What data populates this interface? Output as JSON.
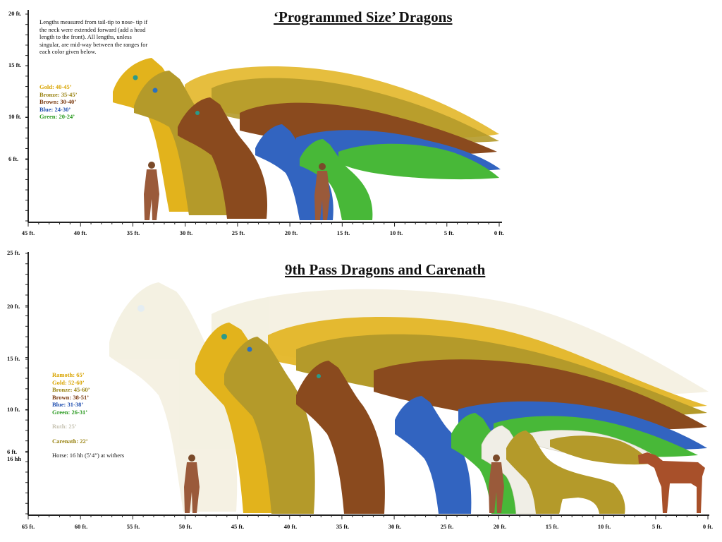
{
  "top": {
    "title": "‘Programmed Size’ Dragons",
    "note": "Lengths measured from tail-tip to nose- tip if the neck were extended forward (add a head length to the front). All lengths, unless singular, are mid-way between the ranges for each color given below.",
    "legend": [
      {
        "text": "Gold: 40-45’",
        "color": "#d9a400"
      },
      {
        "text": "Bronze: 35-45’",
        "color": "#9a8414"
      },
      {
        "text": "Brown: 30-40’",
        "color": "#7a3a10"
      },
      {
        "text": "Blue: 24-30’",
        "color": "#2250b0"
      },
      {
        "text": "Green: 20-24’",
        "color": "#2a9a20"
      }
    ],
    "y_ticks": [
      "20 ft.",
      "15 ft.",
      "10 ft.",
      "6 ft."
    ],
    "x_ticks": [
      "45 ft.",
      "40 ft.",
      "35 ft.",
      "30 ft.",
      "25 ft.",
      "20 ft.",
      "15 ft.",
      "10 ft.",
      "5 ft.",
      "0 ft."
    ]
  },
  "bottom": {
    "title": "9th Pass Dragons and Carenath",
    "legend": [
      {
        "text": "Ramoth: 65’",
        "color": "#d9a400"
      },
      {
        "text": "Gold: 52-60’",
        "color": "#d9a400"
      },
      {
        "text": "Bronze: 45-60’",
        "color": "#9a8414"
      },
      {
        "text": "Brown: 38-51’",
        "color": "#7a3a10"
      },
      {
        "text": "Blue: 31-38’",
        "color": "#2250b0"
      },
      {
        "text": "Green: 26-31’",
        "color": "#2a9a20"
      }
    ],
    "ruth": {
      "text": "Ruth: 25’",
      "color": "#c8c4b4"
    },
    "carenath": {
      "text": "Carenath: 22’",
      "color": "#9a8414"
    },
    "horse": {
      "text": "Horse: 16 hh (5’4”) at withers",
      "color": "#111111"
    },
    "y_ticks": [
      "25 ft.",
      "20 ft.",
      "15 ft.",
      "10 ft.",
      "6 ft.",
      "16 hh"
    ],
    "x_ticks": [
      "65 ft.",
      "60 ft.",
      "55 ft.",
      "50 ft.",
      "45 ft.",
      "40 ft.",
      "35 ft.",
      "30 ft.",
      "25 ft.",
      "20 ft.",
      "15 ft.",
      "10 ft.",
      "5 ft.",
      "0 ft."
    ]
  },
  "colors": {
    "gold": "#e2b31c",
    "bronze": "#b49a2a",
    "brown": "#8a4a1e",
    "blue": "#3264c0",
    "green": "#48b838",
    "white": "#f0eee6",
    "ruth_faded": "#ece6cc",
    "horse": "#a8502a",
    "human": "#9a5a3a"
  }
}
